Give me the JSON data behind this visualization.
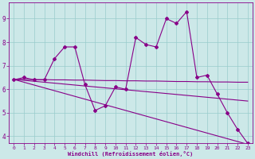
{
  "xlabel": "Windchill (Refroidissement éolien,°C)",
  "background_color": "#cce8e8",
  "line_color": "#880088",
  "x_hours": [
    0,
    1,
    2,
    3,
    4,
    5,
    6,
    7,
    8,
    9,
    10,
    11,
    12,
    13,
    14,
    15,
    16,
    17,
    18,
    19,
    20,
    21,
    22,
    23
  ],
  "y_main": [
    6.4,
    6.5,
    6.4,
    6.4,
    7.3,
    7.8,
    7.8,
    6.2,
    5.1,
    5.3,
    6.1,
    6.0,
    8.2,
    7.9,
    7.8,
    9.0,
    8.8,
    9.3,
    6.5,
    6.6,
    5.8,
    5.0,
    4.3,
    3.7
  ],
  "y_trend1": [
    6.42,
    6.42,
    6.41,
    6.41,
    6.4,
    6.4,
    6.39,
    6.39,
    6.38,
    6.37,
    6.37,
    6.36,
    6.36,
    6.35,
    6.35,
    6.34,
    6.33,
    6.33,
    6.32,
    6.32,
    6.31,
    6.31,
    6.3,
    6.3
  ],
  "y_trend2": [
    6.42,
    6.38,
    6.34,
    6.3,
    6.26,
    6.22,
    6.18,
    6.14,
    6.1,
    6.06,
    6.02,
    5.98,
    5.94,
    5.9,
    5.86,
    5.82,
    5.78,
    5.74,
    5.7,
    5.66,
    5.62,
    5.58,
    5.54,
    5.5
  ],
  "y_trend3": [
    6.42,
    6.3,
    6.18,
    6.06,
    5.94,
    5.82,
    5.7,
    5.58,
    5.46,
    5.34,
    5.22,
    5.1,
    4.98,
    4.86,
    4.74,
    4.62,
    4.5,
    4.38,
    4.26,
    4.14,
    4.02,
    3.9,
    3.78,
    3.66
  ],
  "ylim": [
    3.7,
    9.7
  ],
  "yticks": [
    4,
    5,
    6,
    7,
    8,
    9
  ],
  "xticks": [
    0,
    1,
    2,
    3,
    4,
    5,
    6,
    7,
    8,
    9,
    10,
    11,
    12,
    13,
    14,
    15,
    16,
    17,
    18,
    19,
    20,
    21,
    22,
    23
  ],
  "grid_color": "#99cccc",
  "marker": "D",
  "marker_size": 2,
  "linewidth": 0.8
}
